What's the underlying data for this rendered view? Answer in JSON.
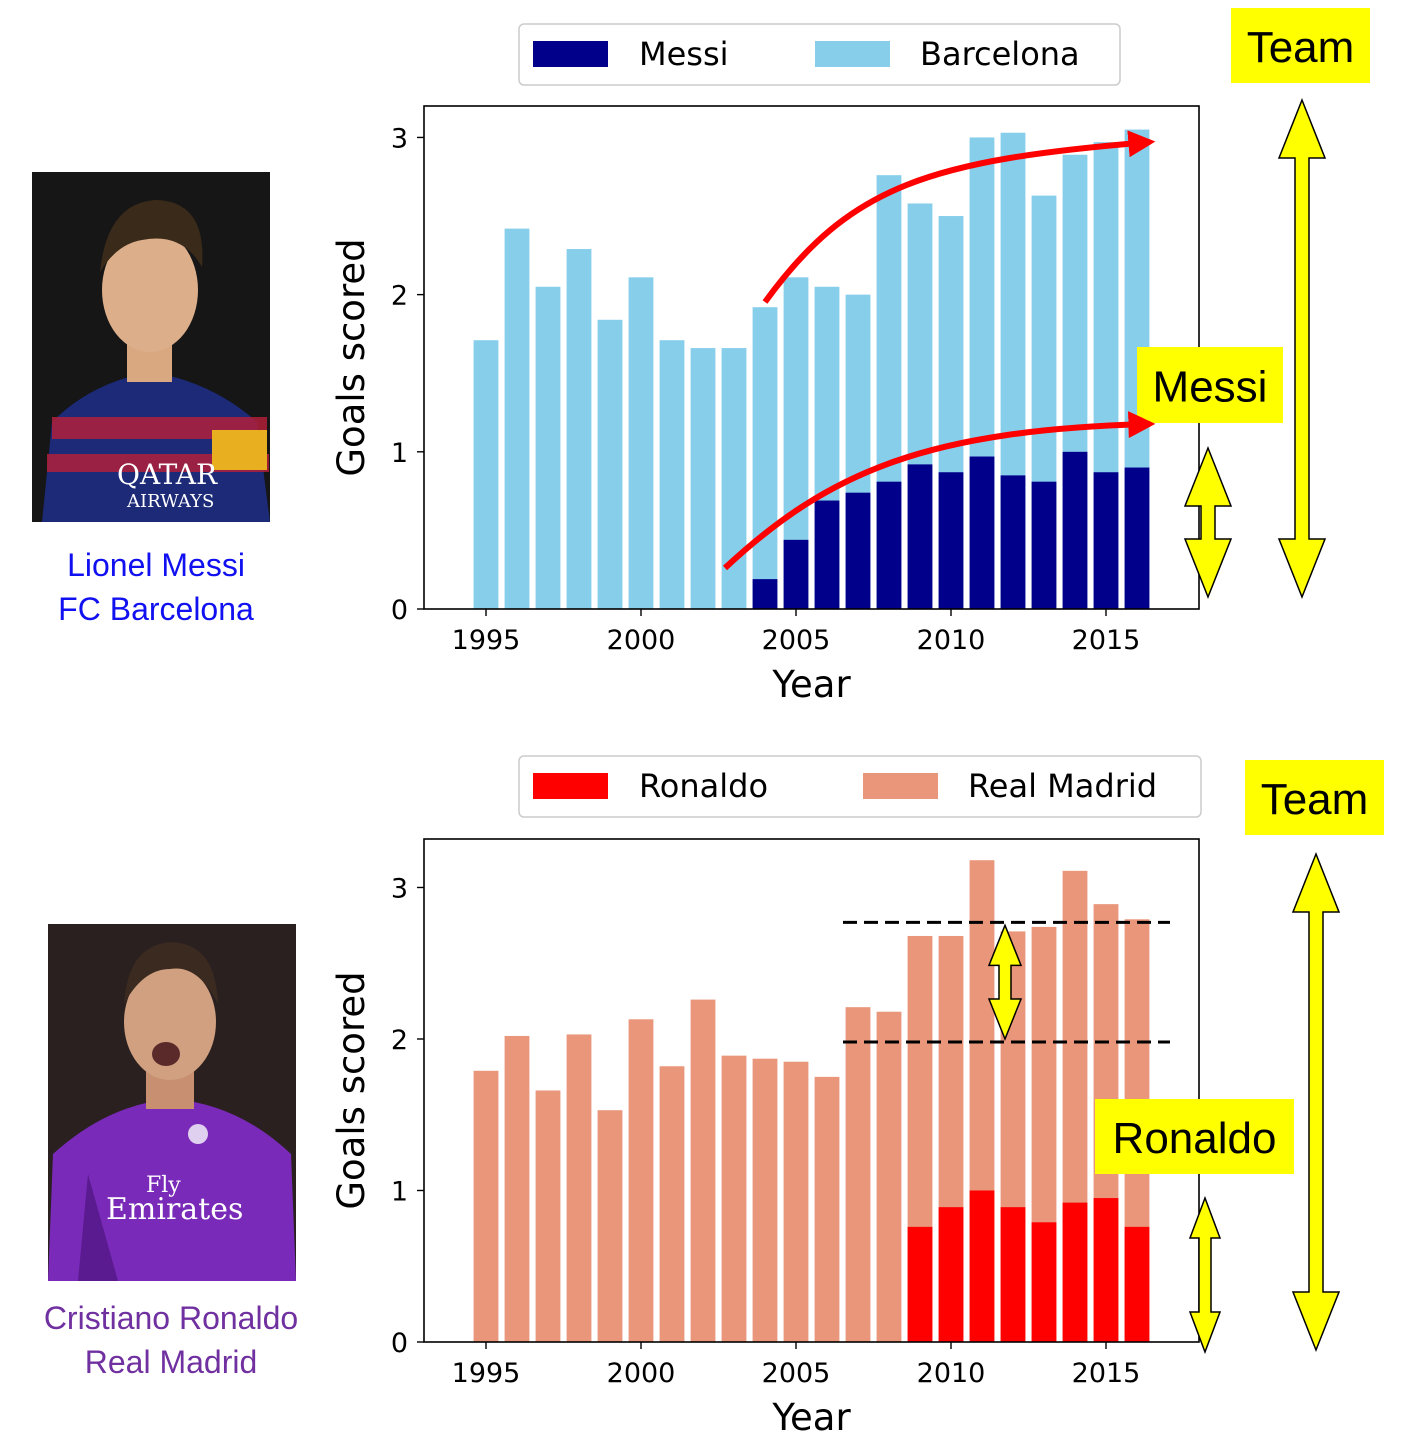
{
  "panels": [
    {
      "player": {
        "name": "Lionel Messi",
        "team": "FC Barcelona",
        "caption_color": "#1010f0"
      },
      "photo": {
        "subject": "messi-portrait",
        "shirt_colors": [
          "#1c2a78",
          "#b0203a"
        ],
        "sponsor_line1": "QATAR",
        "sponsor_line2": "AIRWAYS"
      },
      "annotations": {
        "team_label": "Team",
        "player_label": "Messi",
        "highlight_color": "#ffff00",
        "arrow_color": "#ff0000"
      },
      "chart_data": {
        "type": "bar",
        "stacked": "overlay",
        "xlabel": "Year",
        "ylabel": "Goals scored",
        "xlim": [
          1993,
          2018
        ],
        "ylim": [
          0,
          3.2
        ],
        "xticks": [
          1995,
          2000,
          2005,
          2010,
          2015
        ],
        "yticks": [
          0,
          1,
          2,
          3
        ],
        "legend_position": "top",
        "series": [
          {
            "name": "Messi",
            "color": "#00008b",
            "x": [
              2004,
              2005,
              2006,
              2007,
              2008,
              2009,
              2010,
              2011,
              2012,
              2013,
              2014,
              2015,
              2016
            ],
            "values": [
              0.19,
              0.44,
              0.69,
              0.74,
              0.81,
              0.92,
              0.87,
              0.97,
              0.85,
              0.81,
              1.0,
              0.87,
              0.9
            ]
          },
          {
            "name": "Barcelona",
            "color": "#87ceeb",
            "x": [
              1995,
              1996,
              1997,
              1998,
              1999,
              2000,
              2001,
              2002,
              2003,
              2004,
              2005,
              2006,
              2007,
              2008,
              2009,
              2010,
              2011,
              2012,
              2013,
              2014,
              2015,
              2016
            ],
            "values": [
              1.71,
              2.42,
              2.05,
              2.29,
              1.84,
              2.11,
              1.71,
              1.66,
              1.66,
              1.92,
              2.11,
              2.05,
              2.0,
              2.76,
              2.58,
              2.5,
              3.0,
              3.03,
              2.63,
              2.89,
              2.97,
              3.05
            ]
          }
        ]
      }
    },
    {
      "player": {
        "name": "Cristiano Ronaldo",
        "team": "Real Madrid",
        "caption_color": "#7030a0"
      },
      "photo": {
        "subject": "ronaldo-portrait",
        "shirt_colors": [
          "#7a2ab8",
          "#5a1a90"
        ],
        "sponsor_line1": "Fly",
        "sponsor_line2": "Emirates"
      },
      "annotations": {
        "team_label": "Team",
        "player_label": "Ronaldo",
        "highlight_color": "#ffff00",
        "dashed_lines_y": [
          2.77,
          1.98
        ]
      },
      "chart_data": {
        "type": "bar",
        "stacked": "overlay",
        "xlabel": "Year",
        "ylabel": "Goals scored",
        "xlim": [
          1993,
          2018
        ],
        "ylim": [
          0,
          3.32
        ],
        "xticks": [
          1995,
          2000,
          2005,
          2010,
          2015
        ],
        "yticks": [
          0,
          1,
          2,
          3
        ],
        "legend_position": "top",
        "series": [
          {
            "name": "Ronaldo",
            "color": "#ff0000",
            "x": [
              2009,
              2010,
              2011,
              2012,
              2013,
              2014,
              2015,
              2016
            ],
            "values": [
              0.76,
              0.89,
              1.0,
              0.89,
              0.79,
              0.92,
              0.95,
              0.76
            ]
          },
          {
            "name": "Real Madrid",
            "color": "#e9967a",
            "x": [
              1995,
              1996,
              1997,
              1998,
              1999,
              2000,
              2001,
              2002,
              2003,
              2004,
              2005,
              2006,
              2007,
              2008,
              2009,
              2010,
              2011,
              2012,
              2013,
              2014,
              2015,
              2016
            ],
            "values": [
              1.79,
              2.02,
              1.66,
              2.03,
              1.53,
              2.13,
              1.82,
              2.26,
              1.89,
              1.87,
              1.85,
              1.75,
              2.21,
              2.18,
              2.68,
              2.68,
              3.18,
              2.71,
              2.74,
              3.11,
              2.89,
              2.79
            ]
          }
        ]
      }
    }
  ]
}
